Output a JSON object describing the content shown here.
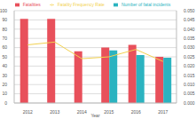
{
  "chart_data": {
    "type": "bar",
    "x_label": "Year",
    "categories": [
      "2012",
      "2013",
      "2014",
      "2015",
      "2016",
      "2017"
    ],
    "series": [
      {
        "name": "Fatalities",
        "color": "#e8505b",
        "type": "bar",
        "values": [
          91,
          91,
          56,
          60,
          63,
          50
        ]
      },
      {
        "name": "Number of fatal incidents",
        "color": "#2bb3c0",
        "type": "bar",
        "values": [
          null,
          null,
          null,
          57,
          52,
          49
        ]
      },
      {
        "name": "Fatality Frequency Rate",
        "color": "#f2d14f",
        "type": "line",
        "axis": "y2",
        "values": [
          0.0315,
          0.033,
          0.024,
          0.025,
          0.029,
          0.0225
        ]
      }
    ],
    "ylim": [
      0,
      100
    ],
    "yticks": [
      0,
      10,
      20,
      30,
      40,
      50,
      60,
      70,
      80,
      90,
      100
    ],
    "y2lim": [
      0,
      0.05
    ],
    "y2ticks": [
      {
        "value": 0,
        "label": "0.000"
      },
      {
        "value": 0.005,
        "label": "0.005"
      },
      {
        "value": 0.01,
        "label": "0.010"
      },
      {
        "value": 0.015,
        "label": "0.015"
      },
      {
        "value": 0.02,
        "label": "0.020"
      },
      {
        "value": 0.025,
        "label": "0.025"
      },
      {
        "value": 0.03,
        "label": "0.030"
      },
      {
        "value": 0.035,
        "label": "0.035"
      },
      {
        "value": 0.04,
        "label": "0.040"
      },
      {
        "value": 0.045,
        "label": "0.045"
      },
      {
        "value": 0.05,
        "label": "0.050"
      }
    ],
    "grid": true,
    "legend": "top"
  }
}
